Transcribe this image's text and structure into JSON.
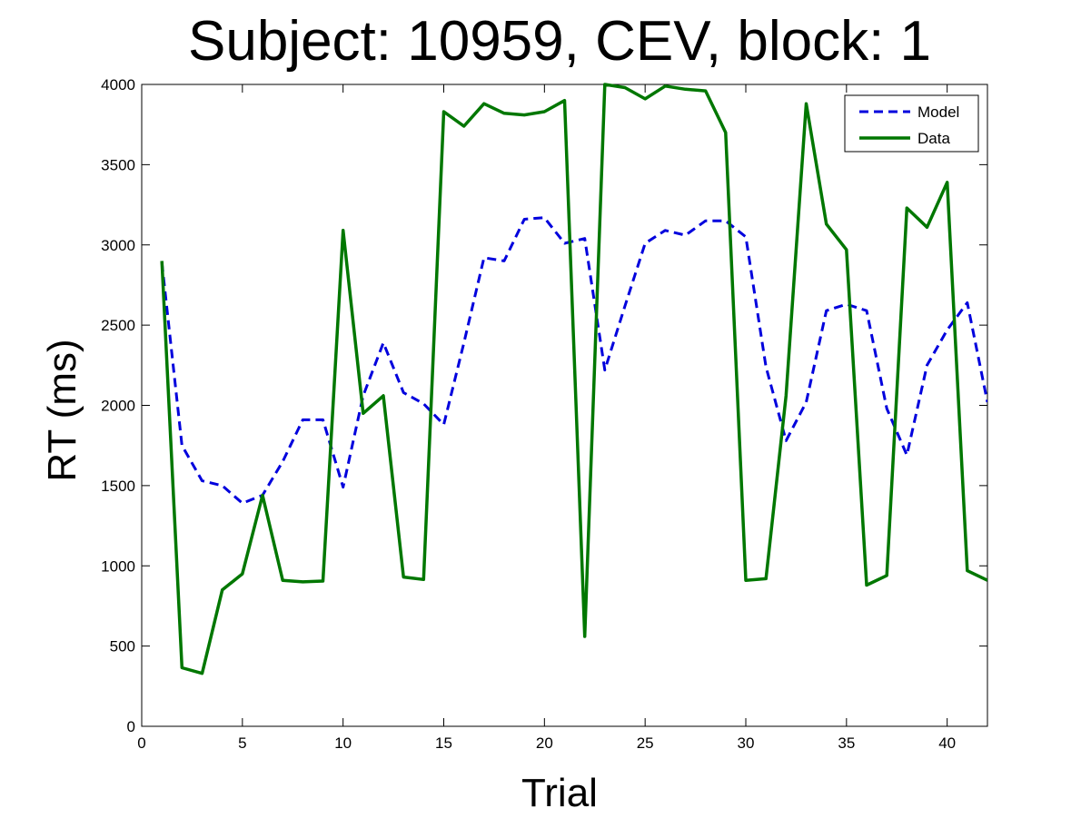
{
  "chart_data": {
    "type": "line",
    "title": "Subject: 10959, CEV, block: 1",
    "xlabel": "Trial",
    "ylabel": "RT (ms)",
    "xlim": [
      0,
      42
    ],
    "ylim": [
      0,
      4000
    ],
    "xticks": [
      0,
      5,
      10,
      15,
      20,
      25,
      30,
      35,
      40
    ],
    "yticks": [
      0,
      500,
      1000,
      1500,
      2000,
      2500,
      3000,
      3500,
      4000
    ],
    "grid": false,
    "legend_position": "top-right",
    "x": [
      1,
      2,
      3,
      4,
      5,
      6,
      7,
      8,
      9,
      10,
      11,
      12,
      13,
      14,
      15,
      16,
      17,
      18,
      19,
      20,
      21,
      22,
      23,
      24,
      25,
      26,
      27,
      28,
      29,
      30,
      31,
      32,
      33,
      34,
      35,
      36,
      37,
      38,
      39,
      40,
      41,
      42
    ],
    "series": [
      {
        "name": "Model",
        "color": "#0000dd",
        "style": "dashed",
        "values": [
          2890,
          1750,
          1530,
          1500,
          1390,
          1440,
          1650,
          1910,
          1910,
          1490,
          2060,
          2390,
          2080,
          2010,
          1880,
          2390,
          2920,
          2900,
          3160,
          3170,
          3010,
          3040,
          2220,
          2620,
          3010,
          3090,
          3060,
          3150,
          3150,
          3050,
          2240,
          1780,
          2020,
          2590,
          2630,
          2590,
          1980,
          1690,
          2250,
          2470,
          2640,
          2020
        ]
      },
      {
        "name": "Data",
        "color": "#007700",
        "style": "solid",
        "values": [
          2900,
          365,
          330,
          850,
          950,
          1440,
          910,
          900,
          905,
          3090,
          1950,
          2060,
          930,
          915,
          3830,
          3740,
          3880,
          3820,
          3810,
          3830,
          3900,
          560,
          4000,
          3980,
          3910,
          3990,
          3970,
          3960,
          3700,
          910,
          920,
          2060,
          3880,
          3130,
          2970,
          880,
          940,
          3230,
          3110,
          3390,
          970,
          910
        ]
      }
    ]
  }
}
